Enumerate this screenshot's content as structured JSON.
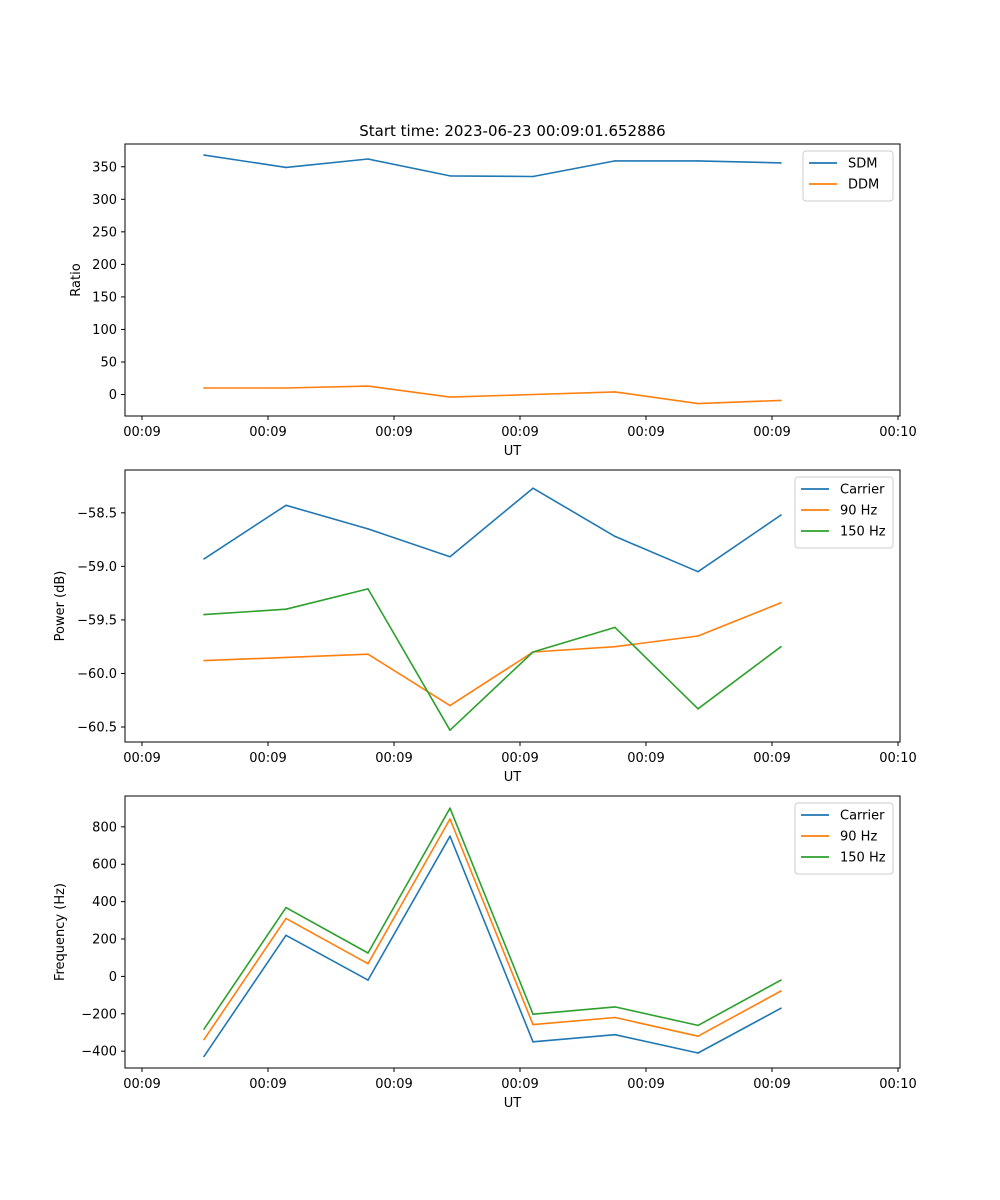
{
  "figure": {
    "title": "Start time: 2023-06-23 00:09:01.652886"
  },
  "chart_data": [
    {
      "type": "line",
      "title": "Start time: 2023-06-23 00:09:01.652886",
      "xlabel": "UT",
      "ylabel": "Ratio",
      "x_ticks": [
        "00:09",
        "00:09",
        "00:09",
        "00:09",
        "00:09",
        "00:09",
        "00:10"
      ],
      "y_ticks": [
        0,
        50,
        100,
        150,
        200,
        250,
        300,
        350
      ],
      "ylim": [
        -33,
        385
      ],
      "legend": "top-right",
      "grid": false,
      "series": [
        {
          "name": "SDM",
          "color": "#1f77b4",
          "values": [
            368,
            349,
            362,
            336,
            335,
            359,
            359,
            356
          ]
        },
        {
          "name": "DDM",
          "color": "#ff7f0e",
          "values": [
            10,
            10,
            13,
            -4,
            0,
            4,
            -14,
            -9
          ]
        }
      ]
    },
    {
      "type": "line",
      "title": "",
      "xlabel": "UT",
      "ylabel": "Power (dB)",
      "x_ticks": [
        "00:09",
        "00:09",
        "00:09",
        "00:09",
        "00:09",
        "00:09",
        "00:10"
      ],
      "y_ticks": [
        -60.5,
        -60.0,
        -59.5,
        -59.0,
        -58.5
      ],
      "y_tick_labels": [
        "−60.5",
        "−60.0",
        "−59.5",
        "−59.0",
        "−58.5"
      ],
      "ylim": [
        -60.64,
        -58.1
      ],
      "legend": "top-right",
      "grid": false,
      "series": [
        {
          "name": "Carrier",
          "color": "#1f77b4",
          "values": [
            -58.93,
            -58.43,
            -58.65,
            -58.91,
            -58.27,
            -58.72,
            -59.05,
            -58.52
          ]
        },
        {
          "name": "90 Hz",
          "color": "#ff7f0e",
          "values": [
            -59.88,
            -59.85,
            -59.82,
            -60.3,
            -59.8,
            -59.75,
            -59.65,
            -59.34
          ]
        },
        {
          "name": "150 Hz",
          "color": "#2ca02c",
          "values": [
            -59.45,
            -59.4,
            -59.21,
            -60.53,
            -59.8,
            -59.57,
            -60.33,
            -59.75
          ]
        }
      ]
    },
    {
      "type": "line",
      "title": "",
      "xlabel": "UT",
      "ylabel": "Frequency (Hz)",
      "x_ticks": [
        "00:09",
        "00:09",
        "00:09",
        "00:09",
        "00:09",
        "00:09",
        "00:10"
      ],
      "y_ticks": [
        -400,
        -200,
        0,
        200,
        400,
        600,
        800
      ],
      "y_tick_labels": [
        "−400",
        "−200",
        "0",
        "200",
        "400",
        "600",
        "800"
      ],
      "ylim": [
        -490,
        965
      ],
      "legend": "top-right",
      "grid": false,
      "series": [
        {
          "name": "Carrier",
          "color": "#1f77b4",
          "values": [
            -428,
            220,
            -20,
            750,
            -350,
            -312,
            -410,
            -170
          ]
        },
        {
          "name": "90 Hz",
          "color": "#ff7f0e",
          "values": [
            -338,
            310,
            68,
            842,
            -258,
            -220,
            -320,
            -78
          ]
        },
        {
          "name": "150 Hz",
          "color": "#2ca02c",
          "values": [
            -282,
            368,
            125,
            900,
            -202,
            -163,
            -262,
            -20
          ]
        }
      ]
    }
  ]
}
